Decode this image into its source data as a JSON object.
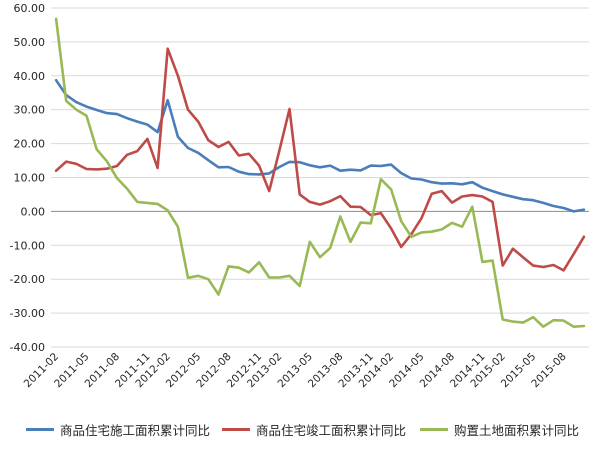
{
  "chart_data": {
    "type": "line",
    "ylim": [
      -40,
      60
    ],
    "yticks": [
      "60.00",
      "50.00",
      "40.00",
      "30.00",
      "20.00",
      "10.00",
      "0.00",
      "-10.00",
      "-20.00",
      "-30.00",
      "-40.00"
    ],
    "x": [
      "2011-02",
      "2011-03",
      "2011-04",
      "2011-05",
      "2011-06",
      "2011-07",
      "2011-08",
      "2011-09",
      "2011-10",
      "2011-11",
      "2011-12",
      "2012-02",
      "2012-03",
      "2012-04",
      "2012-05",
      "2012-06",
      "2012-07",
      "2012-08",
      "2012-09",
      "2012-10",
      "2012-11",
      "2012-12",
      "2013-02",
      "2013-03",
      "2013-04",
      "2013-05",
      "2013-06",
      "2013-07",
      "2013-08",
      "2013-09",
      "2013-10",
      "2013-11",
      "2013-12",
      "2014-02",
      "2014-03",
      "2014-04",
      "2014-05",
      "2014-06",
      "2014-07",
      "2014-08",
      "2014-09",
      "2014-10",
      "2014-11",
      "2014-12",
      "2015-02",
      "2015-03",
      "2015-04",
      "2015-05",
      "2015-06",
      "2015-07",
      "2015-08",
      "2015-09",
      "2015-10"
    ],
    "x_tick_labels": [
      "2011-02",
      "2011-05",
      "2011-08",
      "2011-11",
      "2012-02",
      "2012-05",
      "2012-08",
      "2012-11",
      "2013-02",
      "2013-05",
      "2013-08",
      "2013-11",
      "2014-02",
      "2014-05",
      "2014-08",
      "2014-11",
      "2015-02",
      "2015-05",
      "2015-08"
    ],
    "grid": true,
    "legend_position": "bottom",
    "series": [
      {
        "name": "商品住宅施工面积累计同比",
        "color": "#4a7ebb",
        "values": [
          38.7,
          34.3,
          32.2,
          30.9,
          29.9,
          29.0,
          28.7,
          27.5,
          26.5,
          25.6,
          23.4,
          32.8,
          22.0,
          18.7,
          17.3,
          15.1,
          13.0,
          13.1,
          11.7,
          11.0,
          10.9,
          11.2,
          13.1,
          14.6,
          14.5,
          13.6,
          13.0,
          13.5,
          12.0,
          12.3,
          12.1,
          13.5,
          13.4,
          13.8,
          11.3,
          9.7,
          9.4,
          8.6,
          8.2,
          8.3,
          8.0,
          8.6,
          7.0,
          6.0,
          5.0,
          4.3,
          3.6,
          3.3,
          2.5,
          1.6,
          1.0,
          0.0,
          0.5
        ]
      },
      {
        "name": "商品住宅竣工面积累计同比",
        "color": "#be4b48",
        "values": [
          12.0,
          14.7,
          14.0,
          12.5,
          12.4,
          12.6,
          13.4,
          16.7,
          17.8,
          21.4,
          12.8,
          48.0,
          40.0,
          30.0,
          26.5,
          21.0,
          19.0,
          20.5,
          16.5,
          17.0,
          13.5,
          6.0,
          18.0,
          30.2,
          5.0,
          2.8,
          2.0,
          3.0,
          4.5,
          1.4,
          1.3,
          -1.1,
          -0.5,
          -5.0,
          -10.5,
          -6.7,
          -2.0,
          5.2,
          6.0,
          2.6,
          4.4,
          4.8,
          4.4,
          2.8,
          -16.0,
          -11.0,
          -13.5,
          -16.0,
          -16.4,
          -15.8,
          -17.4,
          -12.5,
          -7.5
        ]
      },
      {
        "name": "购置土地面积累计同比",
        "color": "#98b954",
        "values": [
          56.8,
          32.6,
          30.0,
          28.2,
          18.3,
          14.8,
          9.8,
          6.7,
          2.8,
          2.5,
          2.2,
          0.3,
          -4.5,
          -19.6,
          -19.0,
          -20.0,
          -24.5,
          -16.2,
          -16.6,
          -18.0,
          -15.0,
          -19.5,
          -19.5,
          -19.0,
          -22.0,
          -9.0,
          -13.5,
          -10.8,
          -1.5,
          -9.0,
          -3.3,
          -3.5,
          9.5,
          6.5,
          -2.9,
          -7.5,
          -6.2,
          -6.0,
          -5.3,
          -3.4,
          -4.5,
          1.4,
          -14.9,
          -14.5,
          -31.9,
          -32.5,
          -32.8,
          -31.2,
          -34.0,
          -32.1,
          -32.2,
          -34.0,
          -33.8
        ]
      }
    ]
  }
}
